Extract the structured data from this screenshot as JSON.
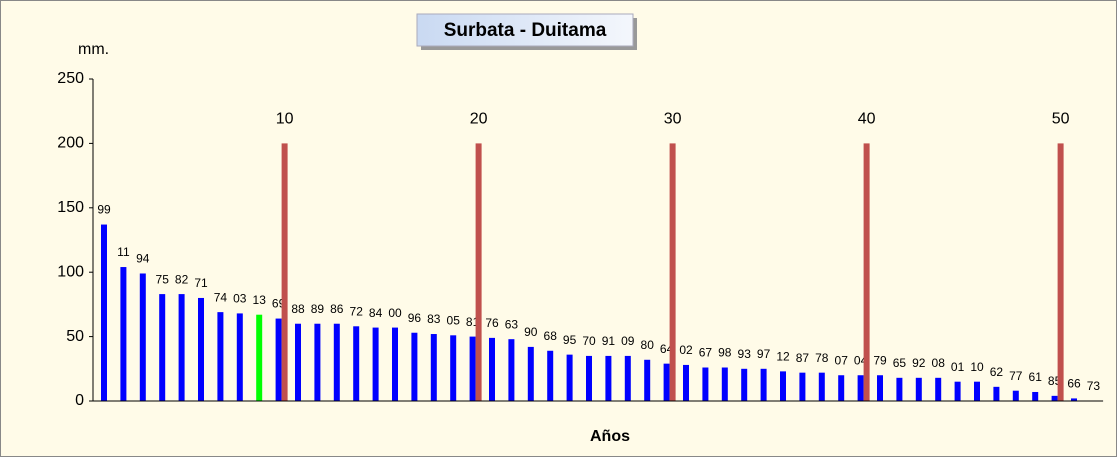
{
  "chart_data": {
    "type": "bar",
    "title": "Surbata - Duitama",
    "y_label": "mm.",
    "x_label": "Años",
    "categories": [
      "99",
      "11",
      "94",
      "75",
      "82",
      "71",
      "74",
      "03",
      "13",
      "69",
      "88",
      "89",
      "86",
      "72",
      "84",
      "00",
      "96",
      "83",
      "05",
      "81",
      "76",
      "63",
      "90",
      "68",
      "95",
      "70",
      "91",
      "09",
      "80",
      "64",
      "02",
      "67",
      "98",
      "93",
      "97",
      "12",
      "87",
      "78",
      "07",
      "04",
      "79",
      "65",
      "92",
      "08",
      "01",
      "10",
      "62",
      "77",
      "61",
      "85",
      "66",
      "73"
    ],
    "values": [
      137,
      104,
      99,
      83,
      83,
      80,
      69,
      68,
      67,
      64,
      60,
      60,
      60,
      58,
      57,
      57,
      53,
      52,
      51,
      50,
      49,
      48,
      42,
      39,
      36,
      35,
      35,
      35,
      32,
      29,
      28,
      26,
      26,
      25,
      25,
      23,
      22,
      22,
      20,
      20,
      20,
      18,
      18,
      18,
      15,
      15,
      11,
      8,
      7,
      4,
      2,
      0
    ],
    "color": "#0000ff",
    "highlight": {
      "index": 8,
      "color": "#00ff00"
    },
    "markers": {
      "x": [
        10,
        20,
        30,
        40,
        50
      ],
      "value": 200,
      "color": "#c0504d"
    },
    "ylim": [
      0,
      250
    ],
    "yticks": [
      0,
      50,
      100,
      150,
      200,
      250
    ]
  }
}
